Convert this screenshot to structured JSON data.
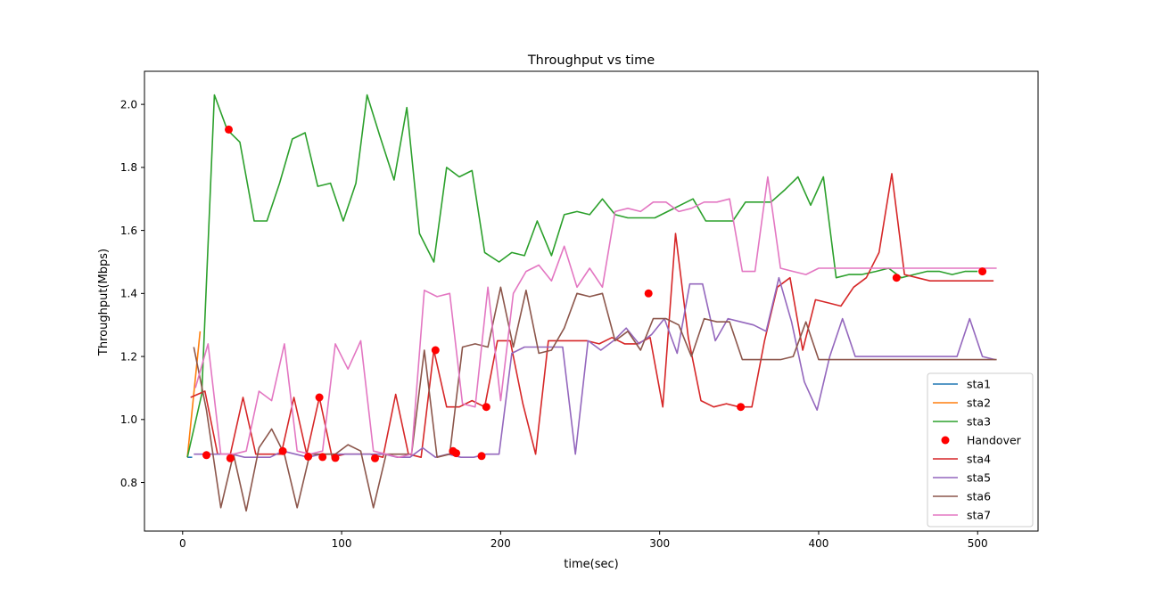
{
  "chart_data": {
    "type": "line",
    "title": "Throughput vs time",
    "xlabel": "time(sec)",
    "ylabel": "Throughput(Mbps)",
    "xlim": [
      -24,
      538
    ],
    "ylim": [
      0.646,
      2.105
    ],
    "xticks": [
      0,
      100,
      200,
      300,
      400,
      500
    ],
    "yticks": [
      0.8,
      1.0,
      1.2,
      1.4,
      1.6,
      1.8,
      2.0
    ],
    "grid": false,
    "legend_position": "lower-right",
    "series": [
      {
        "name": "sta1",
        "color": "#1f77b4",
        "x": [
          3,
          6
        ],
        "y": [
          0.88,
          0.88
        ]
      },
      {
        "name": "sta2",
        "color": "#ff7f0e",
        "x": [
          3,
          11
        ],
        "y": [
          0.88,
          1.28
        ]
      },
      {
        "name": "sta3",
        "color": "#2ca02c",
        "x": [
          3,
          12,
          20,
          28,
          36,
          45,
          53,
          61,
          69,
          77,
          85,
          93,
          101,
          109,
          116,
          124,
          133,
          141,
          149,
          158,
          166,
          174,
          182,
          190,
          199,
          207,
          215,
          223,
          232,
          240,
          248,
          256,
          264,
          272,
          280,
          289,
          297,
          305,
          313,
          321,
          329,
          338,
          346,
          354,
          362,
          370,
          379,
          387,
          395,
          403,
          411,
          419,
          427,
          436,
          444,
          452,
          460,
          468,
          476,
          484,
          492,
          500
        ],
        "y": [
          0.88,
          1.08,
          2.03,
          1.92,
          1.88,
          1.63,
          1.63,
          1.75,
          1.89,
          1.91,
          1.74,
          1.75,
          1.63,
          1.75,
          2.03,
          1.9,
          1.76,
          1.99,
          1.59,
          1.5,
          1.8,
          1.77,
          1.79,
          1.53,
          1.5,
          1.53,
          1.52,
          1.63,
          1.52,
          1.65,
          1.66,
          1.65,
          1.7,
          1.65,
          1.64,
          1.64,
          1.64,
          1.66,
          1.68,
          1.7,
          1.63,
          1.63,
          1.63,
          1.69,
          1.69,
          1.69,
          1.73,
          1.77,
          1.68,
          1.77,
          1.45,
          1.46,
          1.46,
          1.47,
          1.48,
          1.45,
          1.46,
          1.47,
          1.47,
          1.46,
          1.47,
          1.47
        ]
      },
      {
        "name": "sta4",
        "color": "#d62728",
        "x": [
          5,
          14,
          22,
          30,
          38,
          46,
          54,
          62,
          70,
          78,
          86,
          94,
          102,
          110,
          118,
          126,
          134,
          142,
          150,
          158,
          166,
          174,
          182,
          190,
          198,
          206,
          214,
          222,
          230,
          238,
          246,
          254,
          262,
          270,
          278,
          286,
          294,
          302,
          310,
          318,
          326,
          334,
          342,
          350,
          358,
          366,
          374,
          382,
          390,
          398,
          406,
          414,
          422,
          430,
          438,
          446,
          454,
          462,
          470,
          478,
          486,
          494,
          502,
          510
        ],
        "y": [
          1.07,
          1.09,
          0.89,
          0.89,
          1.07,
          0.89,
          0.89,
          0.89,
          1.07,
          0.89,
          1.07,
          0.88,
          0.89,
          0.89,
          0.89,
          0.88,
          1.08,
          0.89,
          0.88,
          1.22,
          1.04,
          1.04,
          1.06,
          1.04,
          1.25,
          1.25,
          1.05,
          0.89,
          1.25,
          1.25,
          1.25,
          1.25,
          1.24,
          1.26,
          1.24,
          1.24,
          1.26,
          1.04,
          1.59,
          1.26,
          1.06,
          1.04,
          1.05,
          1.04,
          1.04,
          1.25,
          1.42,
          1.45,
          1.22,
          1.38,
          1.37,
          1.36,
          1.42,
          1.45,
          1.53,
          1.78,
          1.46,
          1.45,
          1.44,
          1.44,
          1.44,
          1.44,
          1.44,
          1.44
        ]
      },
      {
        "name": "sta5",
        "color": "#9467bd",
        "x": [
          7,
          15,
          23,
          31,
          39,
          47,
          55,
          63,
          71,
          79,
          87,
          95,
          103,
          111,
          119,
          127,
          135,
          143,
          151,
          159,
          167,
          175,
          183,
          191,
          199,
          207,
          215,
          223,
          231,
          239,
          247,
          255,
          263,
          271,
          279,
          287,
          295,
          303,
          311,
          319,
          327,
          335,
          343,
          351,
          359,
          367,
          375,
          383,
          391,
          399,
          407,
          415,
          423,
          431,
          439,
          447,
          455,
          463,
          471,
          479,
          487,
          495,
          503,
          511
        ],
        "y": [
          0.89,
          0.89,
          0.89,
          0.89,
          0.88,
          0.88,
          0.88,
          0.9,
          0.89,
          0.88,
          0.89,
          0.89,
          0.89,
          0.89,
          0.89,
          0.89,
          0.88,
          0.88,
          0.91,
          0.88,
          0.89,
          0.88,
          0.88,
          0.89,
          0.89,
          1.21,
          1.23,
          1.23,
          1.23,
          1.23,
          0.89,
          1.25,
          1.22,
          1.25,
          1.29,
          1.24,
          1.27,
          1.32,
          1.21,
          1.43,
          1.43,
          1.25,
          1.32,
          1.31,
          1.3,
          1.28,
          1.45,
          1.31,
          1.12,
          1.03,
          1.2,
          1.32,
          1.2,
          1.2,
          1.2,
          1.2,
          1.2,
          1.2,
          1.2,
          1.2,
          1.2,
          1.32,
          1.2,
          1.19
        ]
      },
      {
        "name": "sta6",
        "color": "#8c564b",
        "x": [
          7,
          15,
          24,
          32,
          40,
          48,
          56,
          64,
          72,
          80,
          88,
          96,
          104,
          112,
          120,
          128,
          136,
          144,
          152,
          160,
          168,
          176,
          184,
          192,
          200,
          208,
          216,
          224,
          232,
          240,
          248,
          256,
          264,
          272,
          280,
          288,
          296,
          304,
          312,
          320,
          328,
          336,
          344,
          352,
          360,
          368,
          376,
          384,
          392,
          400,
          408,
          416,
          424,
          432,
          440,
          448,
          456,
          464,
          472,
          480,
          488,
          496,
          504,
          512
        ],
        "y": [
          1.23,
          1.03,
          0.72,
          0.89,
          0.71,
          0.91,
          0.97,
          0.89,
          0.72,
          0.89,
          0.89,
          0.89,
          0.92,
          0.9,
          0.72,
          0.89,
          0.89,
          0.89,
          1.22,
          0.88,
          0.89,
          1.23,
          1.24,
          1.23,
          1.42,
          1.23,
          1.41,
          1.21,
          1.22,
          1.29,
          1.4,
          1.39,
          1.4,
          1.25,
          1.28,
          1.22,
          1.32,
          1.32,
          1.3,
          1.2,
          1.32,
          1.31,
          1.31,
          1.19,
          1.19,
          1.19,
          1.19,
          1.2,
          1.31,
          1.19,
          1.19,
          1.19,
          1.19,
          1.19,
          1.19,
          1.19,
          1.19,
          1.19,
          1.19,
          1.19,
          1.19,
          1.19,
          1.19,
          1.19
        ]
      },
      {
        "name": "sta7",
        "color": "#e377c2",
        "x": [
          8,
          16,
          24,
          32,
          40,
          48,
          56,
          64,
          72,
          80,
          88,
          96,
          104,
          112,
          120,
          128,
          136,
          144,
          152,
          160,
          168,
          176,
          184,
          192,
          200,
          208,
          216,
          224,
          232,
          240,
          248,
          256,
          264,
          272,
          280,
          288,
          296,
          304,
          312,
          320,
          328,
          336,
          344,
          352,
          360,
          368,
          376,
          384,
          392,
          400,
          408,
          416,
          424,
          432,
          440,
          448,
          456,
          464,
          472,
          480,
          488,
          496,
          504,
          512
        ],
        "y": [
          1.1,
          1.24,
          0.89,
          0.89,
          0.9,
          1.09,
          1.06,
          1.24,
          0.9,
          0.89,
          0.9,
          1.24,
          1.16,
          1.25,
          0.9,
          0.89,
          0.88,
          0.89,
          1.41,
          1.39,
          1.4,
          1.05,
          1.04,
          1.42,
          1.06,
          1.4,
          1.47,
          1.49,
          1.44,
          1.55,
          1.42,
          1.48,
          1.42,
          1.66,
          1.67,
          1.66,
          1.69,
          1.69,
          1.66,
          1.67,
          1.69,
          1.69,
          1.7,
          1.47,
          1.47,
          1.77,
          1.48,
          1.47,
          1.46,
          1.48,
          1.48,
          1.48,
          1.48,
          1.48,
          1.48,
          1.48,
          1.48,
          1.48,
          1.48,
          1.48,
          1.48,
          1.48,
          1.48,
          1.48
        ]
      }
    ],
    "handover": {
      "name": "Handover",
      "color": "#ff0000",
      "points": [
        [
          15,
          0.887
        ],
        [
          29,
          1.92
        ],
        [
          30,
          0.877
        ],
        [
          63,
          0.9
        ],
        [
          79,
          0.882
        ],
        [
          86,
          1.07
        ],
        [
          88,
          0.881
        ],
        [
          96,
          0.878
        ],
        [
          121,
          0.877
        ],
        [
          159,
          1.22
        ],
        [
          170,
          0.9
        ],
        [
          172,
          0.893
        ],
        [
          188,
          0.884
        ],
        [
          191,
          1.04
        ],
        [
          293,
          1.4
        ],
        [
          351,
          1.04
        ],
        [
          449,
          1.45
        ],
        [
          503,
          1.47
        ]
      ]
    },
    "legend_order": [
      "sta1",
      "sta2",
      "sta3",
      "Handover",
      "sta4",
      "sta5",
      "sta6",
      "sta7"
    ]
  }
}
